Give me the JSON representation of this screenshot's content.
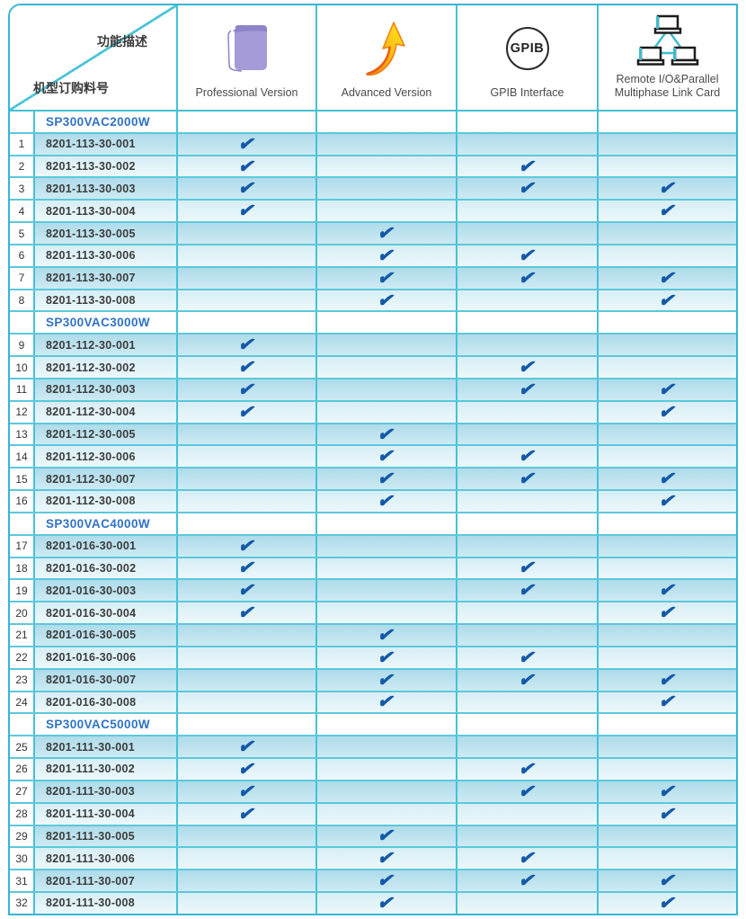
{
  "header": {
    "corner": {
      "top_label": "功能描述",
      "bottom_label": "机型订购料号"
    },
    "columns": [
      {
        "label": "Professional Version",
        "icon": "book-icon"
      },
      {
        "label": "Advanced Version",
        "icon": "up-arrow-icon"
      },
      {
        "label": "GPIB Interface",
        "icon": "gpib-circle-icon",
        "icon_text": "GPIB"
      },
      {
        "label": "Remote I/O&Parallel Multiphase Link Card",
        "icon": "network-icon"
      }
    ]
  },
  "colors": {
    "grid_border": "#45c1d8",
    "outer_border": "#35b7d3",
    "row_dark": "#aedbea",
    "row_light": "#d7eef5",
    "check": "#1459a9",
    "model_text": "#2f73c4",
    "book_purple": "#a49bd8",
    "arrow_yellow": "#ffd31c",
    "arrow_orange": "#ef7d12",
    "network_teal": "#3ebccd"
  },
  "table": {
    "feature_order": [
      "Professional Version",
      "Advanced Version",
      "GPIB Interface",
      "Remote I/O&Parallel Multiphase Link Card"
    ],
    "check_glyph": "✔",
    "groups": [
      {
        "model": "SP300VAC2000W",
        "rows": [
          {
            "no": 1,
            "part": "8201-113-30-001",
            "checks": [
              1,
              0,
              0,
              0
            ]
          },
          {
            "no": 2,
            "part": "8201-113-30-002",
            "checks": [
              1,
              0,
              1,
              0
            ]
          },
          {
            "no": 3,
            "part": "8201-113-30-003",
            "checks": [
              1,
              0,
              1,
              1
            ]
          },
          {
            "no": 4,
            "part": "8201-113-30-004",
            "checks": [
              1,
              0,
              0,
              1
            ]
          },
          {
            "no": 5,
            "part": "8201-113-30-005",
            "checks": [
              0,
              1,
              0,
              0
            ]
          },
          {
            "no": 6,
            "part": "8201-113-30-006",
            "checks": [
              0,
              1,
              1,
              0
            ]
          },
          {
            "no": 7,
            "part": "8201-113-30-007",
            "checks": [
              0,
              1,
              1,
              1
            ]
          },
          {
            "no": 8,
            "part": "8201-113-30-008",
            "checks": [
              0,
              1,
              0,
              1
            ]
          }
        ]
      },
      {
        "model": "SP300VAC3000W",
        "rows": [
          {
            "no": 9,
            "part": "8201-112-30-001",
            "checks": [
              1,
              0,
              0,
              0
            ]
          },
          {
            "no": 10,
            "part": "8201-112-30-002",
            "checks": [
              1,
              0,
              1,
              0
            ]
          },
          {
            "no": 11,
            "part": "8201-112-30-003",
            "checks": [
              1,
              0,
              1,
              1
            ]
          },
          {
            "no": 12,
            "part": "8201-112-30-004",
            "checks": [
              1,
              0,
              0,
              1
            ]
          },
          {
            "no": 13,
            "part": "8201-112-30-005",
            "checks": [
              0,
              1,
              0,
              0
            ]
          },
          {
            "no": 14,
            "part": "8201-112-30-006",
            "checks": [
              0,
              1,
              1,
              0
            ]
          },
          {
            "no": 15,
            "part": "8201-112-30-007",
            "checks": [
              0,
              1,
              1,
              1
            ]
          },
          {
            "no": 16,
            "part": "8201-112-30-008",
            "checks": [
              0,
              1,
              0,
              1
            ]
          }
        ]
      },
      {
        "model": "SP300VAC4000W",
        "rows": [
          {
            "no": 17,
            "part": "8201-016-30-001",
            "checks": [
              1,
              0,
              0,
              0
            ]
          },
          {
            "no": 18,
            "part": "8201-016-30-002",
            "checks": [
              1,
              0,
              1,
              0
            ]
          },
          {
            "no": 19,
            "part": "8201-016-30-003",
            "checks": [
              1,
              0,
              1,
              1
            ]
          },
          {
            "no": 20,
            "part": "8201-016-30-004",
            "checks": [
              1,
              0,
              0,
              1
            ]
          },
          {
            "no": 21,
            "part": "8201-016-30-005",
            "checks": [
              0,
              1,
              0,
              0
            ]
          },
          {
            "no": 22,
            "part": "8201-016-30-006",
            "checks": [
              0,
              1,
              1,
              0
            ]
          },
          {
            "no": 23,
            "part": "8201-016-30-007",
            "checks": [
              0,
              1,
              1,
              1
            ]
          },
          {
            "no": 24,
            "part": "8201-016-30-008",
            "checks": [
              0,
              1,
              0,
              1
            ]
          }
        ]
      },
      {
        "model": "SP300VAC5000W",
        "rows": [
          {
            "no": 25,
            "part": "8201-111-30-001",
            "checks": [
              1,
              0,
              0,
              0
            ]
          },
          {
            "no": 26,
            "part": "8201-111-30-002",
            "checks": [
              1,
              0,
              1,
              0
            ]
          },
          {
            "no": 27,
            "part": "8201-111-30-003",
            "checks": [
              1,
              0,
              1,
              1
            ]
          },
          {
            "no": 28,
            "part": "8201-111-30-004",
            "checks": [
              1,
              0,
              0,
              1
            ]
          },
          {
            "no": 29,
            "part": "8201-111-30-005",
            "checks": [
              0,
              1,
              0,
              0
            ]
          },
          {
            "no": 30,
            "part": "8201-111-30-006",
            "checks": [
              0,
              1,
              1,
              0
            ]
          },
          {
            "no": 31,
            "part": "8201-111-30-007",
            "checks": [
              0,
              1,
              1,
              1
            ]
          },
          {
            "no": 32,
            "part": "8201-111-30-008",
            "checks": [
              0,
              1,
              0,
              1
            ]
          }
        ]
      }
    ]
  }
}
